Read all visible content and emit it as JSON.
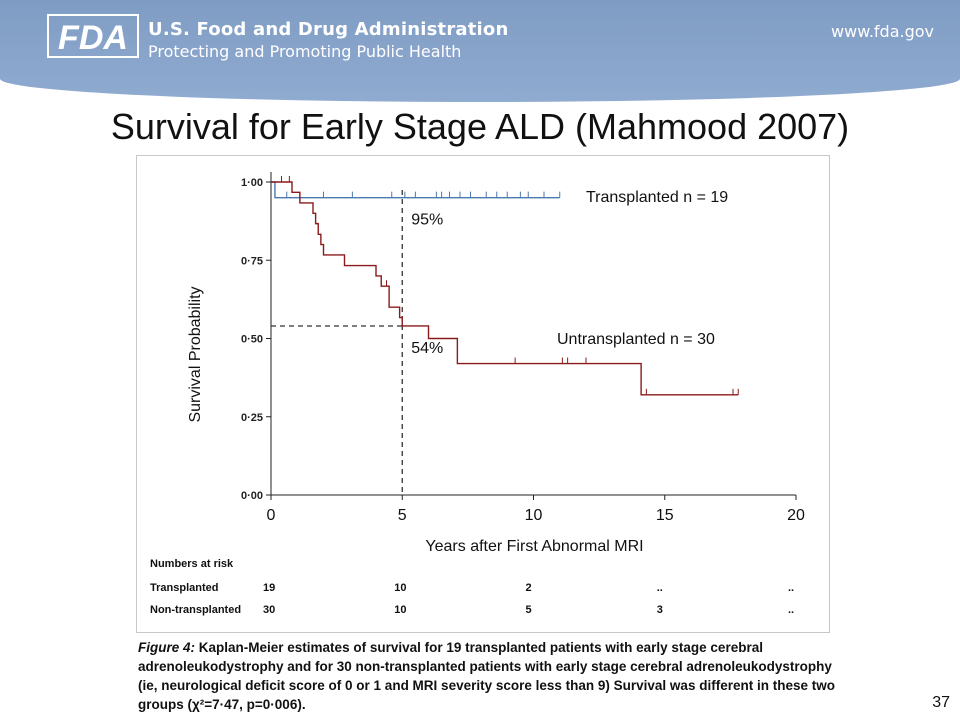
{
  "header": {
    "logo_text": "FDA",
    "agency_name": "U.S. Food and Drug Administration",
    "tagline": "Protecting and Promoting Public Health",
    "website": "www.fda.gov"
  },
  "slide": {
    "title": "Survival for Early Stage ALD (Mahmood 2007)",
    "page_number": "37"
  },
  "chart_data": {
    "type": "line",
    "step": true,
    "ylabel": "Survival Probability",
    "xlabel": "Years after First Abnormal MRI",
    "xlim": [
      0,
      20
    ],
    "ylim": [
      0,
      1
    ],
    "x_ticks": [
      "0",
      "5",
      "10",
      "15",
      "20"
    ],
    "y_ticks": [
      "0·00",
      "0·25",
      "0·50",
      "0·75",
      "1·00"
    ],
    "y_tick_values": [
      0,
      0.25,
      0.5,
      0.75,
      1.0
    ],
    "x_tick_values": [
      0,
      5,
      10,
      15,
      20
    ],
    "series": [
      {
        "name": "Transplanted",
        "label": "Transplanted   n = 19",
        "color": "#4a78b0",
        "points": [
          [
            0,
            1.0
          ],
          [
            0.15,
            0.95
          ],
          [
            11.0,
            0.95
          ]
        ],
        "censored": [
          0.6,
          1.1,
          2.0,
          3.1,
          4.6,
          5.1,
          5.5,
          6.3,
          6.5,
          6.8,
          7.2,
          7.6,
          8.2,
          8.6,
          9.0,
          9.5,
          9.8,
          10.4,
          11.0
        ]
      },
      {
        "name": "Untransplanted",
        "label": "Untransplanted   n = 30",
        "color": "#8b1a1a",
        "points": [
          [
            0,
            1.0
          ],
          [
            0.8,
            0.967
          ],
          [
            1.1,
            0.933
          ],
          [
            1.6,
            0.9
          ],
          [
            1.7,
            0.867
          ],
          [
            1.8,
            0.833
          ],
          [
            1.9,
            0.8
          ],
          [
            2.0,
            0.767
          ],
          [
            2.8,
            0.733
          ],
          [
            4.0,
            0.7
          ],
          [
            4.2,
            0.667
          ],
          [
            4.5,
            0.6
          ],
          [
            4.9,
            0.567
          ],
          [
            5.0,
            0.54
          ],
          [
            6.0,
            0.5
          ],
          [
            7.1,
            0.42
          ],
          [
            14.1,
            0.32
          ],
          [
            17.8,
            0.32
          ]
        ],
        "censored": [
          0.4,
          0.7,
          4.4,
          9.3,
          11.1,
          11.3,
          12.0,
          14.3,
          17.6,
          17.8
        ]
      }
    ],
    "annotations": [
      {
        "text": "95%",
        "x": 5,
        "y": 0.95
      },
      {
        "text": "54%",
        "x": 5,
        "y": 0.54
      }
    ],
    "reference_lines": {
      "x": 5,
      "y": 0.54
    }
  },
  "risk_table": {
    "heading": "Numbers at risk",
    "rows": [
      {
        "label": "Transplanted",
        "values": [
          "19",
          "10",
          "2",
          "..",
          ".."
        ]
      },
      {
        "label": "Non-transplanted",
        "values": [
          "30",
          "10",
          "5",
          "3",
          ".."
        ]
      }
    ]
  },
  "caption": {
    "figure_label": "Figure 4:",
    "text": " Kaplan-Meier estimates of survival for 19 transplanted patients with early stage cerebral adrenoleukodystrophy and for 30 non-transplanted patients with early stage cerebral adrenoleukodystrophy (ie, neurological deficit score of 0 or 1 and MRI severity score less than 9) Survival was different in these two groups (χ²=7·47, p=0·006)."
  }
}
